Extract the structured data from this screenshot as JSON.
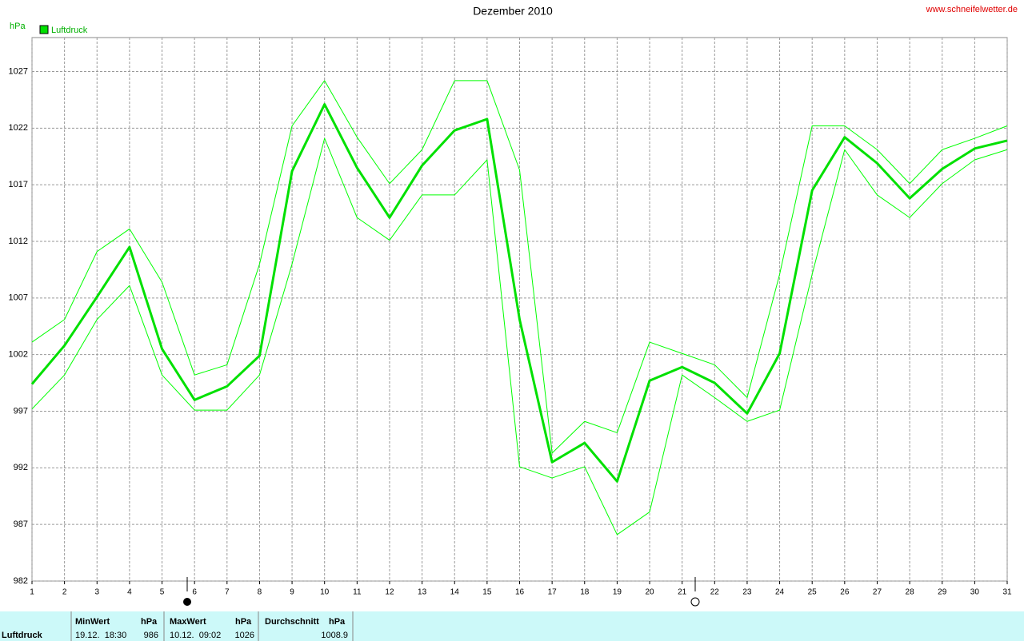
{
  "chart_data": {
    "type": "line",
    "title": "Dezember 2010",
    "source": "www.schneifelwetter.de",
    "y_label": "hPa",
    "x": [
      1,
      2,
      3,
      4,
      5,
      6,
      7,
      8,
      9,
      10,
      11,
      12,
      13,
      14,
      15,
      16,
      17,
      18,
      19,
      20,
      21,
      22,
      23,
      24,
      25,
      26,
      27,
      28,
      29,
      30,
      31
    ],
    "xlim": [
      1,
      31
    ],
    "xticks": [
      1,
      2,
      3,
      4,
      5,
      6,
      7,
      8,
      9,
      10,
      11,
      12,
      13,
      14,
      15,
      16,
      17,
      18,
      19,
      20,
      21,
      22,
      23,
      24,
      25,
      26,
      27,
      28,
      29,
      30,
      31
    ],
    "ylim": [
      982,
      1030
    ],
    "yticks": [
      982,
      987,
      992,
      997,
      1002,
      1007,
      1012,
      1017,
      1022,
      1027
    ],
    "grid": true,
    "legend": "top-left",
    "series": [
      {
        "name": "Luftdruck",
        "color": "#00e000",
        "width": 3,
        "values": [
          999.4,
          1002.8,
          1007.1,
          1011.5,
          1002.5,
          998.0,
          999.2,
          1001.9,
          1018.2,
          1024.1,
          1018.5,
          1014.1,
          1018.7,
          1021.8,
          1022.8,
          1005.1,
          992.5,
          994.2,
          990.8,
          999.7,
          1000.9,
          999.5,
          996.8,
          1002.1,
          1016.5,
          1021.2,
          1018.9,
          1015.8,
          1018.4,
          1020.2,
          1020.9
        ]
      },
      {
        "color": "#00ff00",
        "width": 1,
        "values": [
          1003.1,
          1005.1,
          1011.1,
          1013.1,
          1008.4,
          1000.2,
          1001.1,
          1010.0,
          1022.2,
          1026.2,
          1021.2,
          1017.1,
          1020.1,
          1026.2,
          1026.2,
          1018.3,
          993.3,
          996.1,
          995.1,
          1003.1,
          1002.1,
          1001.1,
          998.2,
          1009.1,
          1022.2,
          1022.2,
          1020.1,
          1017.1,
          1020.1,
          1021.1,
          1022.2
        ]
      },
      {
        "color": "#00ff00",
        "width": 1,
        "values": [
          997.2,
          1000.2,
          1005.1,
          1008.1,
          1000.2,
          997.1,
          997.1,
          1000.2,
          1010.0,
          1021.1,
          1014.1,
          1012.1,
          1016.1,
          1016.1,
          1019.2,
          992.1,
          991.1,
          992.1,
          986.1,
          988.1,
          1000.2,
          998.2,
          996.1,
          997.1,
          1009.1,
          1020.1,
          1016.1,
          1014.1,
          1017.1,
          1019.2,
          1020.1
        ]
      }
    ]
  },
  "summary": {
    "row_label": "Luftdruck",
    "min": {
      "header": "MinWert",
      "unit": "hPa",
      "time": "19.12.  18:30",
      "value": 986
    },
    "max": {
      "header": "MaxWert",
      "unit": "hPa",
      "time": "10.12.  09:02",
      "value": 1026
    },
    "avg": {
      "header": "Durchschnitt",
      "unit": "hPa",
      "value": 1008.9
    }
  }
}
